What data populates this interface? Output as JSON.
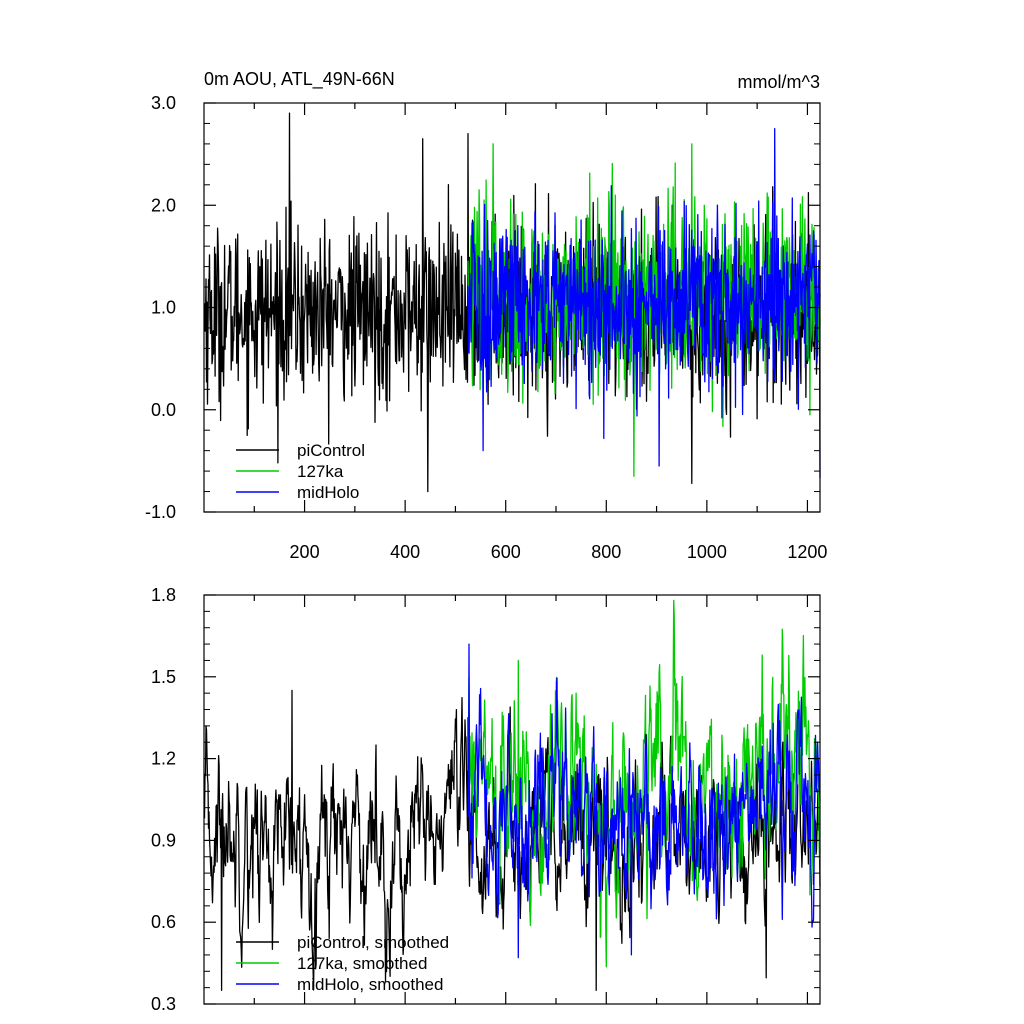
{
  "chart_data": [
    {
      "type": "line",
      "title": "0m AOU, ATL_49N-66N",
      "units": "mmol/m^3",
      "xlabel": "",
      "ylabel": "",
      "xlim": [
        0,
        1225
      ],
      "ylim": [
        -1.0,
        3.0
      ],
      "x_ticks": [
        200,
        400,
        600,
        800,
        1000,
        1200
      ],
      "x_tick_labels": [
        "200",
        "400",
        "600",
        "800",
        "1000",
        "1200"
      ],
      "y_ticks": [
        -1.0,
        0.0,
        1.0,
        2.0,
        3.0
      ],
      "y_tick_labels": [
        "-1.0",
        "0.0",
        "1.0",
        "2.0",
        "3.0"
      ],
      "grid": false,
      "legend_position": "bottom-left",
      "series": [
        {
          "name": "piControl",
          "color": "#000000",
          "x_range": [
            1,
            1225
          ],
          "mean": 0.95,
          "spread": 0.42,
          "anchors": [
            [
              170,
              2.9
            ],
            [
              435,
              2.65
            ],
            [
              525,
              2.7
            ],
            [
              445,
              -0.8
            ],
            [
              970,
              -0.72
            ]
          ]
        },
        {
          "name": "127ka",
          "color": "#00cc00",
          "x_range": [
            525,
            1225
          ],
          "mean": 1.1,
          "spread": 0.45,
          "anchors": [
            [
              575,
              2.6
            ],
            [
              970,
              2.6
            ],
            [
              855,
              -0.65
            ],
            [
              1205,
              -0.05
            ]
          ]
        },
        {
          "name": "midHolo",
          "color": "#0000ff",
          "x_range": [
            525,
            1225
          ],
          "mean": 1.05,
          "spread": 0.43,
          "anchors": [
            [
              1135,
              2.75
            ],
            [
              905,
              -0.55
            ],
            [
              555,
              -0.4
            ]
          ]
        }
      ]
    },
    {
      "type": "line",
      "title": "",
      "xlabel": "",
      "ylabel": "",
      "xlim": [
        0,
        1225
      ],
      "ylim": [
        0.3,
        1.8
      ],
      "x_ticks": [
        200,
        400,
        600,
        800,
        1000,
        1200
      ],
      "y_ticks": [
        0.3,
        0.6,
        0.9,
        1.2,
        1.5,
        1.8
      ],
      "y_tick_labels": [
        "0.3",
        "0.6",
        "0.9",
        "1.2",
        "1.5",
        "1.8"
      ],
      "grid": false,
      "legend_position": "bottom-left",
      "series": [
        {
          "name": "piControl, smoothed",
          "color": "#000000",
          "x_range": [
            1,
            1225
          ],
          "mean": 0.9,
          "spread": 0.17,
          "anchors": [
            [
              175,
              1.45
            ],
            [
              35,
              0.35
            ],
            [
              780,
              0.35
            ],
            [
              525,
              1.35
            ]
          ]
        },
        {
          "name": "127ka, smoothed",
          "color": "#00cc00",
          "x_range": [
            525,
            1225
          ],
          "mean": 1.08,
          "spread": 0.2,
          "anchors": [
            [
              625,
              1.56
            ],
            [
              1110,
              1.58
            ],
            [
              1205,
              0.7
            ]
          ]
        },
        {
          "name": "midHolo, smoothed",
          "color": "#0000ff",
          "x_range": [
            525,
            1225
          ],
          "mean": 1.0,
          "spread": 0.18,
          "anchors": [
            [
              527,
              1.62
            ],
            [
              625,
              0.47
            ],
            [
              850,
              0.48
            ]
          ]
        }
      ]
    }
  ]
}
